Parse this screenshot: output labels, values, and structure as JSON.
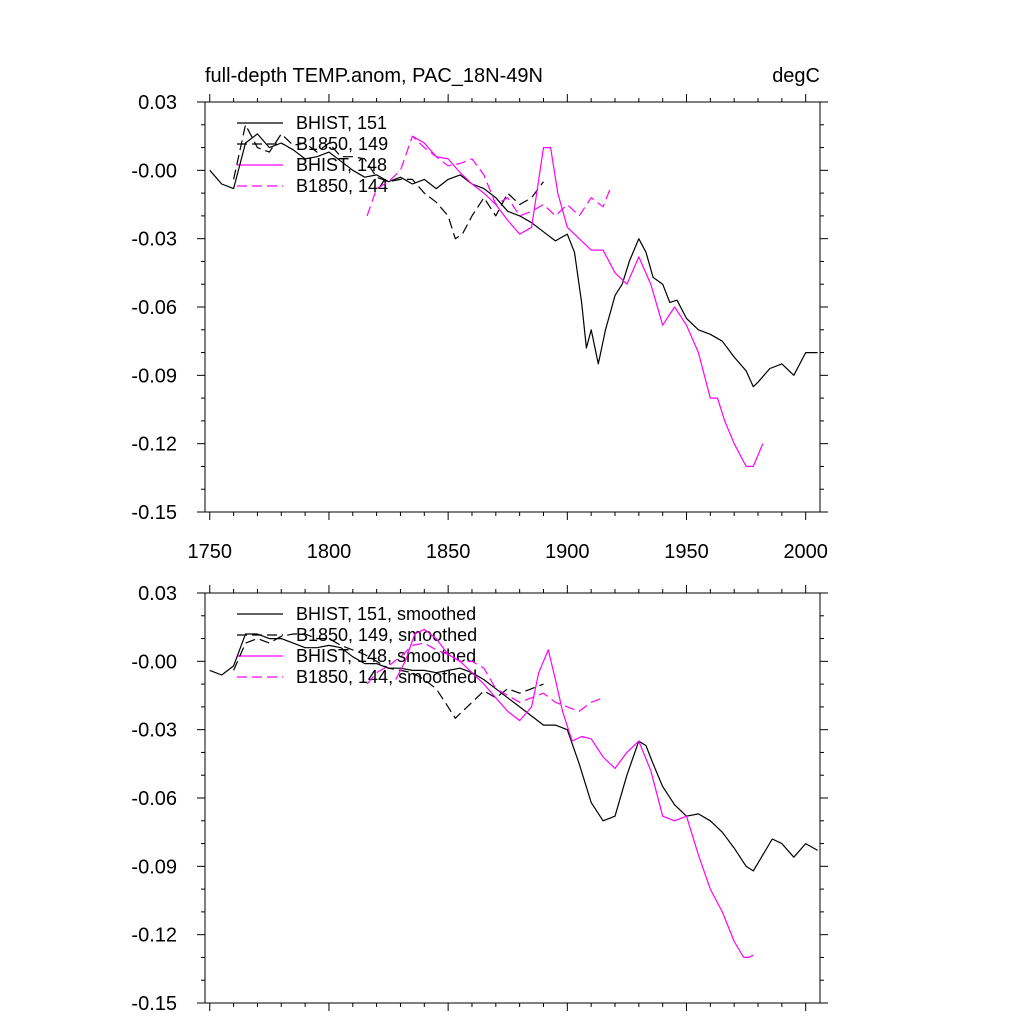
{
  "chart_data": [
    {
      "type": "line",
      "title": "full-depth TEMP.anom, PAC_18N-49N",
      "units": "degC",
      "xlabel": "",
      "ylabel": "",
      "xlim": [
        1748,
        2006
      ],
      "ylim": [
        -0.15,
        0.03
      ],
      "yticks": [
        "0.03",
        "-0.00",
        "-0.03",
        "-0.06",
        "-0.09",
        "-0.12",
        "-0.15"
      ],
      "xticks": [
        "1750",
        "1800",
        "1850",
        "1900",
        "1950",
        "2000"
      ],
      "series": [
        {
          "name": "BHIST, 151",
          "color": "#000000",
          "dash": "solid",
          "x": [
            1750,
            1755,
            1760,
            1765,
            1770,
            1775,
            1780,
            1785,
            1790,
            1795,
            1800,
            1805,
            1810,
            1815,
            1820,
            1825,
            1830,
            1835,
            1840,
            1845,
            1850,
            1855,
            1860,
            1865,
            1870,
            1875,
            1880,
            1885,
            1890,
            1895,
            1900,
            1903,
            1906,
            1908,
            1910,
            1913,
            1916,
            1920,
            1923,
            1926,
            1930,
            1933,
            1936,
            1940,
            1943,
            1946,
            1950,
            1955,
            1960,
            1965,
            1970,
            1975,
            1978,
            1980,
            1985,
            1990,
            1995,
            2000,
            2005
          ],
          "y": [
            0.0,
            -0.006,
            -0.008,
            0.012,
            0.016,
            0.01,
            0.012,
            0.009,
            0.005,
            0.006,
            0.008,
            0.004,
            0.0,
            -0.003,
            -0.002,
            -0.005,
            -0.003,
            -0.006,
            -0.004,
            -0.008,
            -0.004,
            -0.002,
            -0.006,
            -0.008,
            -0.012,
            -0.018,
            -0.02,
            -0.023,
            -0.027,
            -0.031,
            -0.028,
            -0.036,
            -0.058,
            -0.078,
            -0.07,
            -0.085,
            -0.07,
            -0.055,
            -0.05,
            -0.04,
            -0.03,
            -0.036,
            -0.047,
            -0.05,
            -0.058,
            -0.057,
            -0.065,
            -0.07,
            -0.072,
            -0.075,
            -0.082,
            -0.088,
            -0.095,
            -0.093,
            -0.087,
            -0.085,
            -0.09,
            -0.08,
            -0.08
          ]
        },
        {
          "name": "B1850, 149",
          "color": "#000000",
          "dash": "dashed",
          "x": [
            1760,
            1765,
            1770,
            1775,
            1780,
            1785,
            1790,
            1795,
            1800,
            1805,
            1810,
            1815,
            1820,
            1825,
            1830,
            1835,
            1840,
            1845,
            1850,
            1853,
            1856,
            1860,
            1865,
            1870,
            1875,
            1880,
            1885,
            1890
          ],
          "y": [
            -0.004,
            0.02,
            0.01,
            0.008,
            0.016,
            0.011,
            0.012,
            0.008,
            0.012,
            0.006,
            0.006,
            0.005,
            -0.003,
            -0.005,
            -0.004,
            -0.004,
            -0.01,
            -0.014,
            -0.02,
            -0.03,
            -0.028,
            -0.02,
            -0.012,
            -0.02,
            -0.01,
            -0.015,
            -0.012,
            -0.005
          ]
        },
        {
          "name": "BHIST, 148",
          "color": "#ff00ff",
          "dash": "solid",
          "x": [
            1835,
            1840,
            1845,
            1850,
            1855,
            1860,
            1865,
            1870,
            1875,
            1880,
            1885,
            1890,
            1893,
            1896,
            1900,
            1905,
            1910,
            1915,
            1920,
            1925,
            1930,
            1935,
            1940,
            1945,
            1950,
            1955,
            1960,
            1963,
            1966,
            1970,
            1975,
            1978,
            1982
          ],
          "y": [
            0.015,
            0.012,
            0.006,
            0.005,
            -0.001,
            -0.006,
            -0.01,
            -0.015,
            -0.022,
            -0.028,
            -0.025,
            0.01,
            0.01,
            -0.01,
            -0.025,
            -0.03,
            -0.035,
            -0.035,
            -0.045,
            -0.05,
            -0.038,
            -0.05,
            -0.068,
            -0.06,
            -0.068,
            -0.08,
            -0.1,
            -0.1,
            -0.11,
            -0.12,
            -0.13,
            -0.13,
            -0.12
          ]
        },
        {
          "name": "B1850, 144",
          "color": "#ff00ff",
          "dash": "dashed",
          "x": [
            1816,
            1820,
            1825,
            1830,
            1835,
            1840,
            1845,
            1850,
            1855,
            1860,
            1865,
            1870,
            1875,
            1880,
            1885,
            1890,
            1895,
            1900,
            1905,
            1910,
            1915,
            1918
          ],
          "y": [
            -0.02,
            -0.008,
            -0.005,
            0.0,
            0.015,
            0.01,
            0.006,
            0.002,
            0.003,
            0.005,
            -0.002,
            -0.015,
            -0.012,
            -0.02,
            -0.018,
            -0.015,
            -0.02,
            -0.015,
            -0.02,
            -0.012,
            -0.016,
            -0.008
          ]
        }
      ]
    },
    {
      "type": "line",
      "title": "",
      "xlim": [
        1748,
        2006
      ],
      "ylim": [
        -0.15,
        0.03
      ],
      "yticks": [
        "0.03",
        "-0.00",
        "-0.03",
        "-0.06",
        "-0.09",
        "-0.12",
        "-0.15"
      ],
      "series": [
        {
          "name": "BHIST, 151, smoothed",
          "color": "#000000",
          "dash": "solid",
          "x": [
            1750,
            1755,
            1760,
            1765,
            1770,
            1775,
            1780,
            1785,
            1790,
            1795,
            1800,
            1805,
            1810,
            1815,
            1820,
            1825,
            1830,
            1835,
            1840,
            1845,
            1850,
            1855,
            1860,
            1865,
            1870,
            1875,
            1880,
            1885,
            1890,
            1895,
            1900,
            1905,
            1910,
            1915,
            1920,
            1925,
            1930,
            1933,
            1936,
            1940,
            1945,
            1950,
            1955,
            1960,
            1965,
            1970,
            1975,
            1978,
            1982,
            1986,
            1990,
            1995,
            2000,
            2005
          ],
          "y": [
            -0.004,
            -0.006,
            -0.002,
            0.012,
            0.012,
            0.01,
            0.01,
            0.008,
            0.006,
            0.006,
            0.007,
            0.006,
            0.002,
            -0.001,
            -0.001,
            -0.003,
            -0.003,
            -0.004,
            -0.004,
            -0.005,
            -0.004,
            -0.003,
            -0.005,
            -0.008,
            -0.012,
            -0.016,
            -0.02,
            -0.024,
            -0.028,
            -0.028,
            -0.03,
            -0.045,
            -0.062,
            -0.07,
            -0.068,
            -0.05,
            -0.035,
            -0.037,
            -0.045,
            -0.055,
            -0.063,
            -0.068,
            -0.067,
            -0.07,
            -0.075,
            -0.082,
            -0.09,
            -0.092,
            -0.085,
            -0.078,
            -0.08,
            -0.086,
            -0.08,
            -0.083
          ]
        },
        {
          "name": "B1850, 149, smoothed",
          "color": "#000000",
          "dash": "dashed",
          "x": [
            1760,
            1765,
            1770,
            1775,
            1780,
            1785,
            1790,
            1795,
            1800,
            1805,
            1810,
            1815,
            1820,
            1825,
            1830,
            1835,
            1840,
            1845,
            1850,
            1853,
            1856,
            1860,
            1865,
            1870,
            1875,
            1880,
            1885,
            1890
          ],
          "y": [
            -0.004,
            0.008,
            0.01,
            0.008,
            0.011,
            0.012,
            0.012,
            0.01,
            0.01,
            0.007,
            0.005,
            0.003,
            0.0,
            -0.003,
            -0.004,
            -0.005,
            -0.008,
            -0.012,
            -0.02,
            -0.025,
            -0.022,
            -0.018,
            -0.013,
            -0.016,
            -0.012,
            -0.014,
            -0.012,
            -0.01
          ]
        },
        {
          "name": "BHIST, 148, smoothed",
          "color": "#ff00ff",
          "dash": "solid",
          "x": [
            1828,
            1832,
            1836,
            1840,
            1845,
            1850,
            1855,
            1860,
            1865,
            1870,
            1875,
            1880,
            1885,
            1888,
            1892,
            1895,
            1898,
            1902,
            1906,
            1910,
            1915,
            1920,
            1925,
            1930,
            1935,
            1940,
            1945,
            1950,
            1955,
            1960,
            1965,
            1970,
            1974,
            1976,
            1978
          ],
          "y": [
            -0.008,
            0.0,
            0.012,
            0.014,
            0.01,
            0.003,
            0.0,
            -0.005,
            -0.01,
            -0.016,
            -0.022,
            -0.026,
            -0.02,
            -0.005,
            0.005,
            -0.008,
            -0.022,
            -0.035,
            -0.033,
            -0.034,
            -0.042,
            -0.047,
            -0.04,
            -0.035,
            -0.048,
            -0.068,
            -0.07,
            -0.068,
            -0.085,
            -0.1,
            -0.11,
            -0.123,
            -0.13,
            -0.13,
            -0.129
          ]
        },
        {
          "name": "B1850, 144, smoothed",
          "color": "#ff00ff",
          "dash": "dashed",
          "x": [
            1816,
            1820,
            1825,
            1830,
            1835,
            1840,
            1845,
            1850,
            1855,
            1860,
            1865,
            1870,
            1875,
            1880,
            1885,
            1890,
            1895,
            1900,
            1905,
            1910,
            1915
          ],
          "y": [
            -0.01,
            -0.005,
            -0.002,
            0.002,
            0.007,
            0.008,
            0.005,
            0.003,
            0.0,
            0.0,
            -0.003,
            -0.012,
            -0.015,
            -0.018,
            -0.016,
            -0.014,
            -0.018,
            -0.02,
            -0.022,
            -0.018,
            -0.016
          ]
        }
      ]
    }
  ]
}
